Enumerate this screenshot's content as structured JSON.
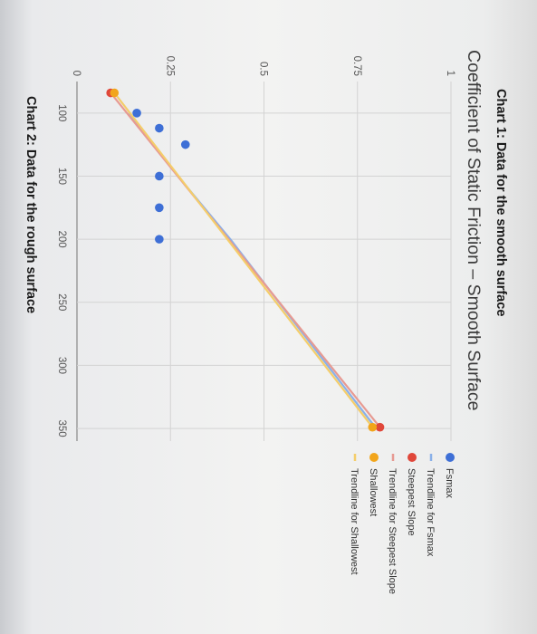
{
  "captions": {
    "chart1": "Chart 1: Data for the smooth surface",
    "chart2": "Chart 2: Data for the rough surface"
  },
  "colors": {
    "fsmax": "#3e6fd6",
    "trend_fsmax": "#8ab0e8",
    "steepest": "#e0473a",
    "trend_steepest": "#e79a92",
    "shallowest": "#f2a51b",
    "trend_shallowest": "#f4cd6a",
    "grid": "#d3d3d3"
  },
  "chart_data": {
    "type": "scatter",
    "title": "Coefficient of Static Friction – Smooth Surface",
    "xlabel": "",
    "ylabel": "",
    "xlim": [
      75,
      360
    ],
    "ylim": [
      0,
      1
    ],
    "x_ticks": [
      "100",
      "150",
      "200",
      "250",
      "300",
      "350"
    ],
    "y_ticks": [
      "0",
      "0.25",
      "0.5",
      "0.75",
      "1"
    ],
    "grid": true,
    "legend_position": "right",
    "series": [
      {
        "name": "Fsmax",
        "kind": "points",
        "color": "#3e6fd6",
        "points": [
          [
            100,
            0.16
          ],
          [
            112,
            0.22
          ],
          [
            125,
            0.29
          ],
          [
            150,
            0.22
          ],
          [
            175,
            0.22
          ],
          [
            200,
            0.22
          ]
        ]
      },
      {
        "name": "Trendline for Fsmax",
        "kind": "line",
        "color": "#8ab0e8",
        "points": [
          [
            100,
            0.14
          ],
          [
            150,
            0.27
          ],
          [
            200,
            0.41
          ],
          [
            250,
            0.54
          ],
          [
            300,
            0.67
          ],
          [
            350,
            0.8
          ]
        ]
      },
      {
        "name": "Steepest Slope",
        "kind": "points",
        "color": "#e0473a",
        "points": [
          [
            84,
            0.09
          ],
          [
            349,
            0.81
          ]
        ]
      },
      {
        "name": "Trendline for Steepest Slope",
        "kind": "line",
        "color": "#e79a92",
        "points": [
          [
            84,
            0.09
          ],
          [
            349,
            0.81
          ]
        ]
      },
      {
        "name": "Shallowest",
        "kind": "points",
        "color": "#f2a51b",
        "points": [
          [
            84,
            0.1
          ],
          [
            349,
            0.79
          ]
        ]
      },
      {
        "name": "Trendline for Shallowest",
        "kind": "line",
        "color": "#f4cd6a",
        "points": [
          [
            84,
            0.1
          ],
          [
            349,
            0.79
          ]
        ]
      }
    ]
  }
}
